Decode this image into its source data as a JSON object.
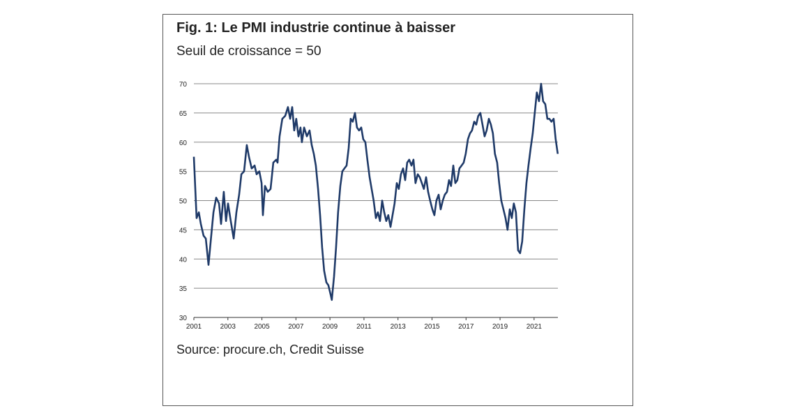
{
  "chart_data": {
    "type": "line",
    "title": "Fig. 1: Le PMI industrie continue à baisser",
    "subtitle": "Seuil de croissance = 50",
    "source": "Source: procure.ch, Credit Suisse",
    "x": [
      2001.0,
      2001.16,
      2001.29,
      2001.41,
      2001.57,
      2001.7,
      2001.86,
      2002.02,
      2002.15,
      2002.31,
      2002.48,
      2002.6,
      2002.76,
      2002.89,
      2003.01,
      2003.17,
      2003.34,
      2003.5,
      2003.66,
      2003.79,
      2003.95,
      2004.11,
      2004.24,
      2004.4,
      2004.57,
      2004.69,
      2004.85,
      2004.98,
      2005.06,
      2005.18,
      2005.34,
      2005.51,
      2005.67,
      2005.84,
      2005.92,
      2006.04,
      2006.2,
      2006.37,
      2006.53,
      2006.66,
      2006.78,
      2006.9,
      2007.02,
      2007.15,
      2007.27,
      2007.35,
      2007.48,
      2007.64,
      2007.8,
      2007.93,
      2008.05,
      2008.17,
      2008.3,
      2008.42,
      2008.54,
      2008.66,
      2008.79,
      2008.91,
      2009.03,
      2009.11,
      2009.24,
      2009.36,
      2009.48,
      2009.61,
      2009.73,
      2009.85,
      2009.98,
      2010.1,
      2010.22,
      2010.34,
      2010.47,
      2010.59,
      2010.71,
      2010.84,
      2010.96,
      2011.08,
      2011.2,
      2011.33,
      2011.45,
      2011.57,
      2011.7,
      2011.82,
      2011.94,
      2012.07,
      2012.19,
      2012.31,
      2012.43,
      2012.56,
      2012.68,
      2012.8,
      2012.93,
      2013.05,
      2013.17,
      2013.3,
      2013.42,
      2013.54,
      2013.66,
      2013.79,
      2013.91,
      2014.03,
      2014.16,
      2014.28,
      2014.4,
      2014.52,
      2014.65,
      2014.77,
      2014.89,
      2015.02,
      2015.14,
      2015.26,
      2015.39,
      2015.51,
      2015.63,
      2015.75,
      2015.88,
      2016.0,
      2016.12,
      2016.25,
      2016.37,
      2016.49,
      2016.61,
      2016.74,
      2016.86,
      2016.98,
      2017.11,
      2017.23,
      2017.35,
      2017.48,
      2017.6,
      2017.72,
      2017.84,
      2017.97,
      2018.09,
      2018.21,
      2018.34,
      2018.46,
      2018.58,
      2018.7,
      2018.83,
      2018.95,
      2019.07,
      2019.2,
      2019.32,
      2019.44,
      2019.57,
      2019.69,
      2019.81,
      2019.93,
      2020.06,
      2020.18,
      2020.3,
      2020.43,
      2020.55,
      2020.67,
      2020.8,
      2020.92,
      2021.04,
      2021.16,
      2021.29,
      2021.41,
      2021.53,
      2021.66,
      2021.78,
      2021.9,
      2022.02,
      2022.15,
      2022.27,
      2022.39
    ],
    "series": [
      {
        "color": "#1f3a68",
        "values": [
          57.5,
          47,
          48,
          46,
          44,
          43.5,
          39,
          44,
          48,
          50.5,
          49.5,
          46,
          51.5,
          46.5,
          49.5,
          46.5,
          43.5,
          48,
          51,
          54.5,
          55,
          59.5,
          57.5,
          55.5,
          56,
          54.5,
          55,
          53,
          47.5,
          52.5,
          51.5,
          52,
          56.5,
          57,
          56.5,
          61,
          64,
          64.5,
          66,
          64,
          66,
          62,
          64,
          61,
          62.5,
          60,
          62.5,
          61,
          62,
          59.5,
          58,
          56,
          52,
          47.5,
          42,
          38,
          36,
          35.5,
          34,
          33,
          37,
          42,
          48,
          52.5,
          55,
          55.5,
          56,
          59,
          64,
          63.5,
          65,
          62.5,
          62,
          62.5,
          60.5,
          60,
          57,
          54,
          52,
          50,
          47,
          48,
          46.5,
          50,
          48,
          46.5,
          47.5,
          45.5,
          47.5,
          49.5,
          53,
          52,
          54.5,
          55.5,
          53.5,
          56.5,
          57,
          56,
          57,
          53,
          54.5,
          54,
          53,
          52,
          54,
          51.5,
          50,
          48.5,
          47.5,
          50,
          51,
          48.5,
          50,
          51,
          51.5,
          53.5,
          52.5,
          56,
          53,
          53.5,
          55.5,
          56,
          56.5,
          58,
          60.5,
          61.5,
          62,
          63.5,
          63,
          64.5,
          65,
          63,
          61,
          62,
          64,
          63,
          61.5,
          58,
          56.5,
          53,
          50,
          48.5,
          47,
          45,
          48.5,
          47,
          49.5,
          48,
          41.5,
          41,
          43,
          48.5,
          53,
          56,
          59,
          61.5,
          65,
          68.5,
          67,
          70,
          67,
          66.5,
          64,
          64,
          63.5,
          64,
          60.5,
          58
        ]
      }
    ],
    "xlim": [
      2001,
      2022.4
    ],
    "xticks": [
      2001,
      2003,
      2005,
      2007,
      2009,
      2011,
      2013,
      2015,
      2017,
      2019,
      2021
    ],
    "ylim": [
      30,
      70
    ],
    "yticks": [
      30,
      35,
      40,
      45,
      50,
      55,
      60,
      65,
      70
    ],
    "grid": true
  }
}
